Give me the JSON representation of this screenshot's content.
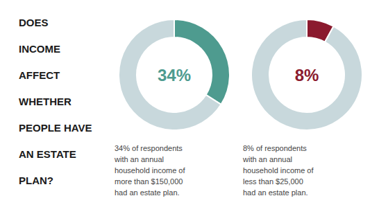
{
  "title": "DOES\nINCOME\nAFFECT\nWHETHER\nPEOPLE HAVE\nAN ESTATE\nPLAN?",
  "chart_data": [
    {
      "type": "pie",
      "values": [
        34,
        66
      ],
      "value_labels": [
        "34%",
        null
      ],
      "colors": [
        "#4e9b8f",
        "#c8d8dc"
      ],
      "annotations": [
        "34% of respondents",
        "with an annual",
        "household income of",
        "more than $150,000",
        "had an estate plan."
      ]
    },
    {
      "type": "pie",
      "values": [
        8,
        92
      ],
      "value_labels": [
        "8%",
        null
      ],
      "colors": [
        "#8b1a2e",
        "#c8d8dc"
      ],
      "annotations": [
        "8% of respondents",
        "with an annual",
        "household income of",
        "less than $25,000",
        "had an estate plan."
      ]
    }
  ]
}
